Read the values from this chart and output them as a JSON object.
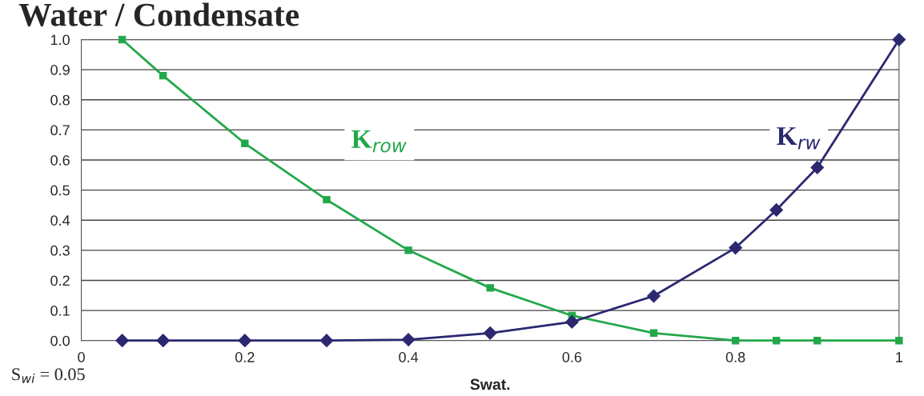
{
  "chart_data": {
    "type": "line",
    "title": "Water / Condensate",
    "xlabel": "Swat.",
    "x": [
      0.05,
      0.1,
      0.2,
      0.3,
      0.4,
      0.5,
      0.6,
      0.7,
      0.8,
      0.85,
      0.9,
      1.0
    ],
    "series": [
      {
        "name": "K$_{row}$",
        "color": "#22a84a",
        "marker": "square",
        "values": [
          1.0,
          0.88,
          0.655,
          0.468,
          0.3,
          0.175,
          0.083,
          0.025,
          0.0,
          0.0,
          0.0,
          0.0
        ]
      },
      {
        "name": "K$_{rw}$",
        "color": "#2b2870",
        "marker": "diamond",
        "values": [
          0.0,
          0.0,
          0.0,
          0.0,
          0.003,
          0.025,
          0.062,
          0.148,
          0.308,
          0.434,
          0.575,
          1.0
        ]
      }
    ],
    "xlim": [
      0,
      1
    ],
    "xticks": [
      0,
      0.2,
      0.4,
      0.6,
      0.8,
      1
    ],
    "ylim": [
      0,
      1.0
    ],
    "yticks": [
      {
        "value": 0,
        "label": "0.0"
      },
      {
        "value": 0.1,
        "label": "0.1"
      },
      {
        "value": 0.2,
        "label": "0.2"
      },
      {
        "value": 0.3,
        "label": "0.3"
      },
      {
        "value": 0.4,
        "label": "0.4"
      },
      {
        "value": 0.5,
        "label": "0.5"
      },
      {
        "value": 0.6,
        "label": "0.6"
      },
      {
        "value": 0.7,
        "label": "0.7"
      },
      {
        "value": 0.8,
        "label": "0.8"
      },
      {
        "value": 0.9,
        "label": "0.9"
      },
      {
        "value": 1.0,
        "label": "1.0"
      }
    ],
    "grid": "y",
    "legend": false,
    "line_style": "solid",
    "annotations": [
      "S$_{wi}$ = 0.05"
    ]
  }
}
